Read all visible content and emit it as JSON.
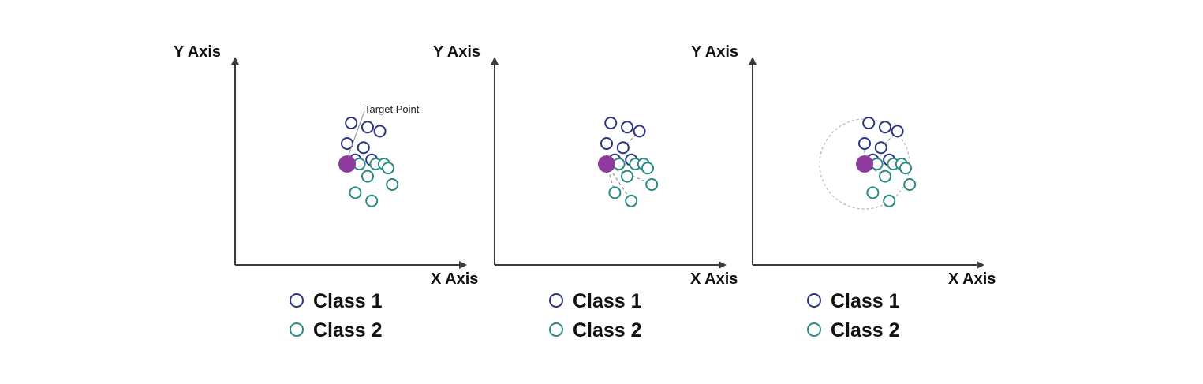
{
  "colors": {
    "class1": "#2d3580",
    "class2": "#2a8a84",
    "target": "#8e3a9e",
    "axis": "#3a3a3a"
  },
  "labels": {
    "y_axis": "Y Axis",
    "x_axis": "X Axis",
    "target_point": "Target Point"
  },
  "legend": [
    {
      "label": "Class 1",
      "class": "class1"
    },
    {
      "label": "Class 2",
      "class": "class2"
    }
  ],
  "panels": [
    {
      "id": "panel-1",
      "show_annotation": true,
      "show_neighbor_lines": false,
      "show_radius": false
    },
    {
      "id": "panel-2",
      "show_annotation": false,
      "show_neighbor_lines": true,
      "neighbor_lines": "all",
      "show_radius": false
    },
    {
      "id": "panel-3",
      "show_annotation": false,
      "show_neighbor_lines": true,
      "neighbor_lines": "nearest",
      "show_radius": true
    }
  ],
  "points": {
    "class1": [
      [
        1,
        10
      ],
      [
        5,
        9
      ],
      [
        8,
        8
      ],
      [
        0,
        5
      ],
      [
        4,
        4
      ],
      [
        2,
        1
      ],
      [
        6,
        1
      ]
    ],
    "class2": [
      [
        3,
        0
      ],
      [
        7,
        0
      ],
      [
        9,
        0
      ],
      [
        10,
        -1
      ],
      [
        5,
        -3
      ],
      [
        11,
        -5
      ],
      [
        2,
        -7
      ],
      [
        6,
        -9
      ]
    ],
    "target": [
      0,
      0
    ]
  }
}
